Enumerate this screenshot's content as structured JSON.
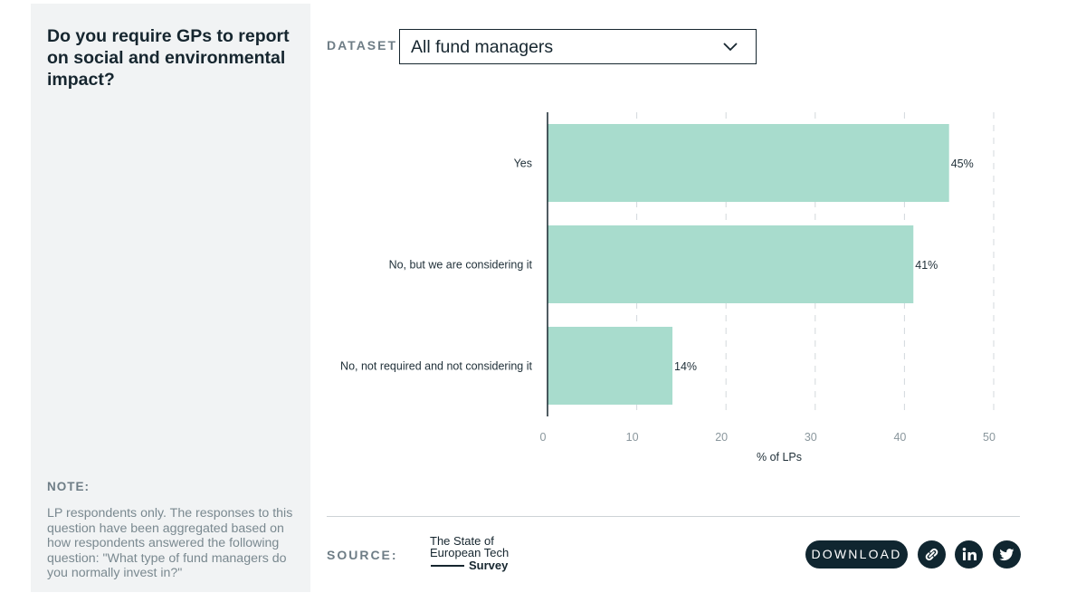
{
  "sidebar": {
    "question": "Do you require GPs to report on social and environmental impact?",
    "note_label": "NOTE:",
    "note_text": "LP respondents only. The responses to this question have been aggregated based on how respondents answered the following question: \"What type of fund managers do you normally invest in?\""
  },
  "dataset": {
    "label": "DATASET",
    "selected": "All fund managers"
  },
  "chart_data": {
    "type": "bar",
    "orientation": "horizontal",
    "categories": [
      "Yes",
      "No, but we are considering it",
      "No, not required and not considering it"
    ],
    "values": [
      45,
      41,
      14
    ],
    "value_labels": [
      "45%",
      "41%",
      "14%"
    ],
    "xlabel": "% of LPs",
    "xlim": [
      0,
      50
    ],
    "xticks": [
      0,
      10,
      20,
      30,
      40,
      50
    ],
    "grid": "vertical dashed",
    "bar_color": "#a8dccd"
  },
  "footer": {
    "source_label": "SOURCE:",
    "logo_line1": "The State of",
    "logo_line2": "European Tech",
    "logo_line3": "Survey",
    "download_label": "DOWNLOAD"
  },
  "icons": {
    "link": "link-icon",
    "linkedin": "linkedin-icon",
    "twitter": "twitter-icon"
  },
  "colors": {
    "dark": "#102630",
    "bar": "#a8dccd",
    "sidebar_bg": "#f1f3f4"
  }
}
